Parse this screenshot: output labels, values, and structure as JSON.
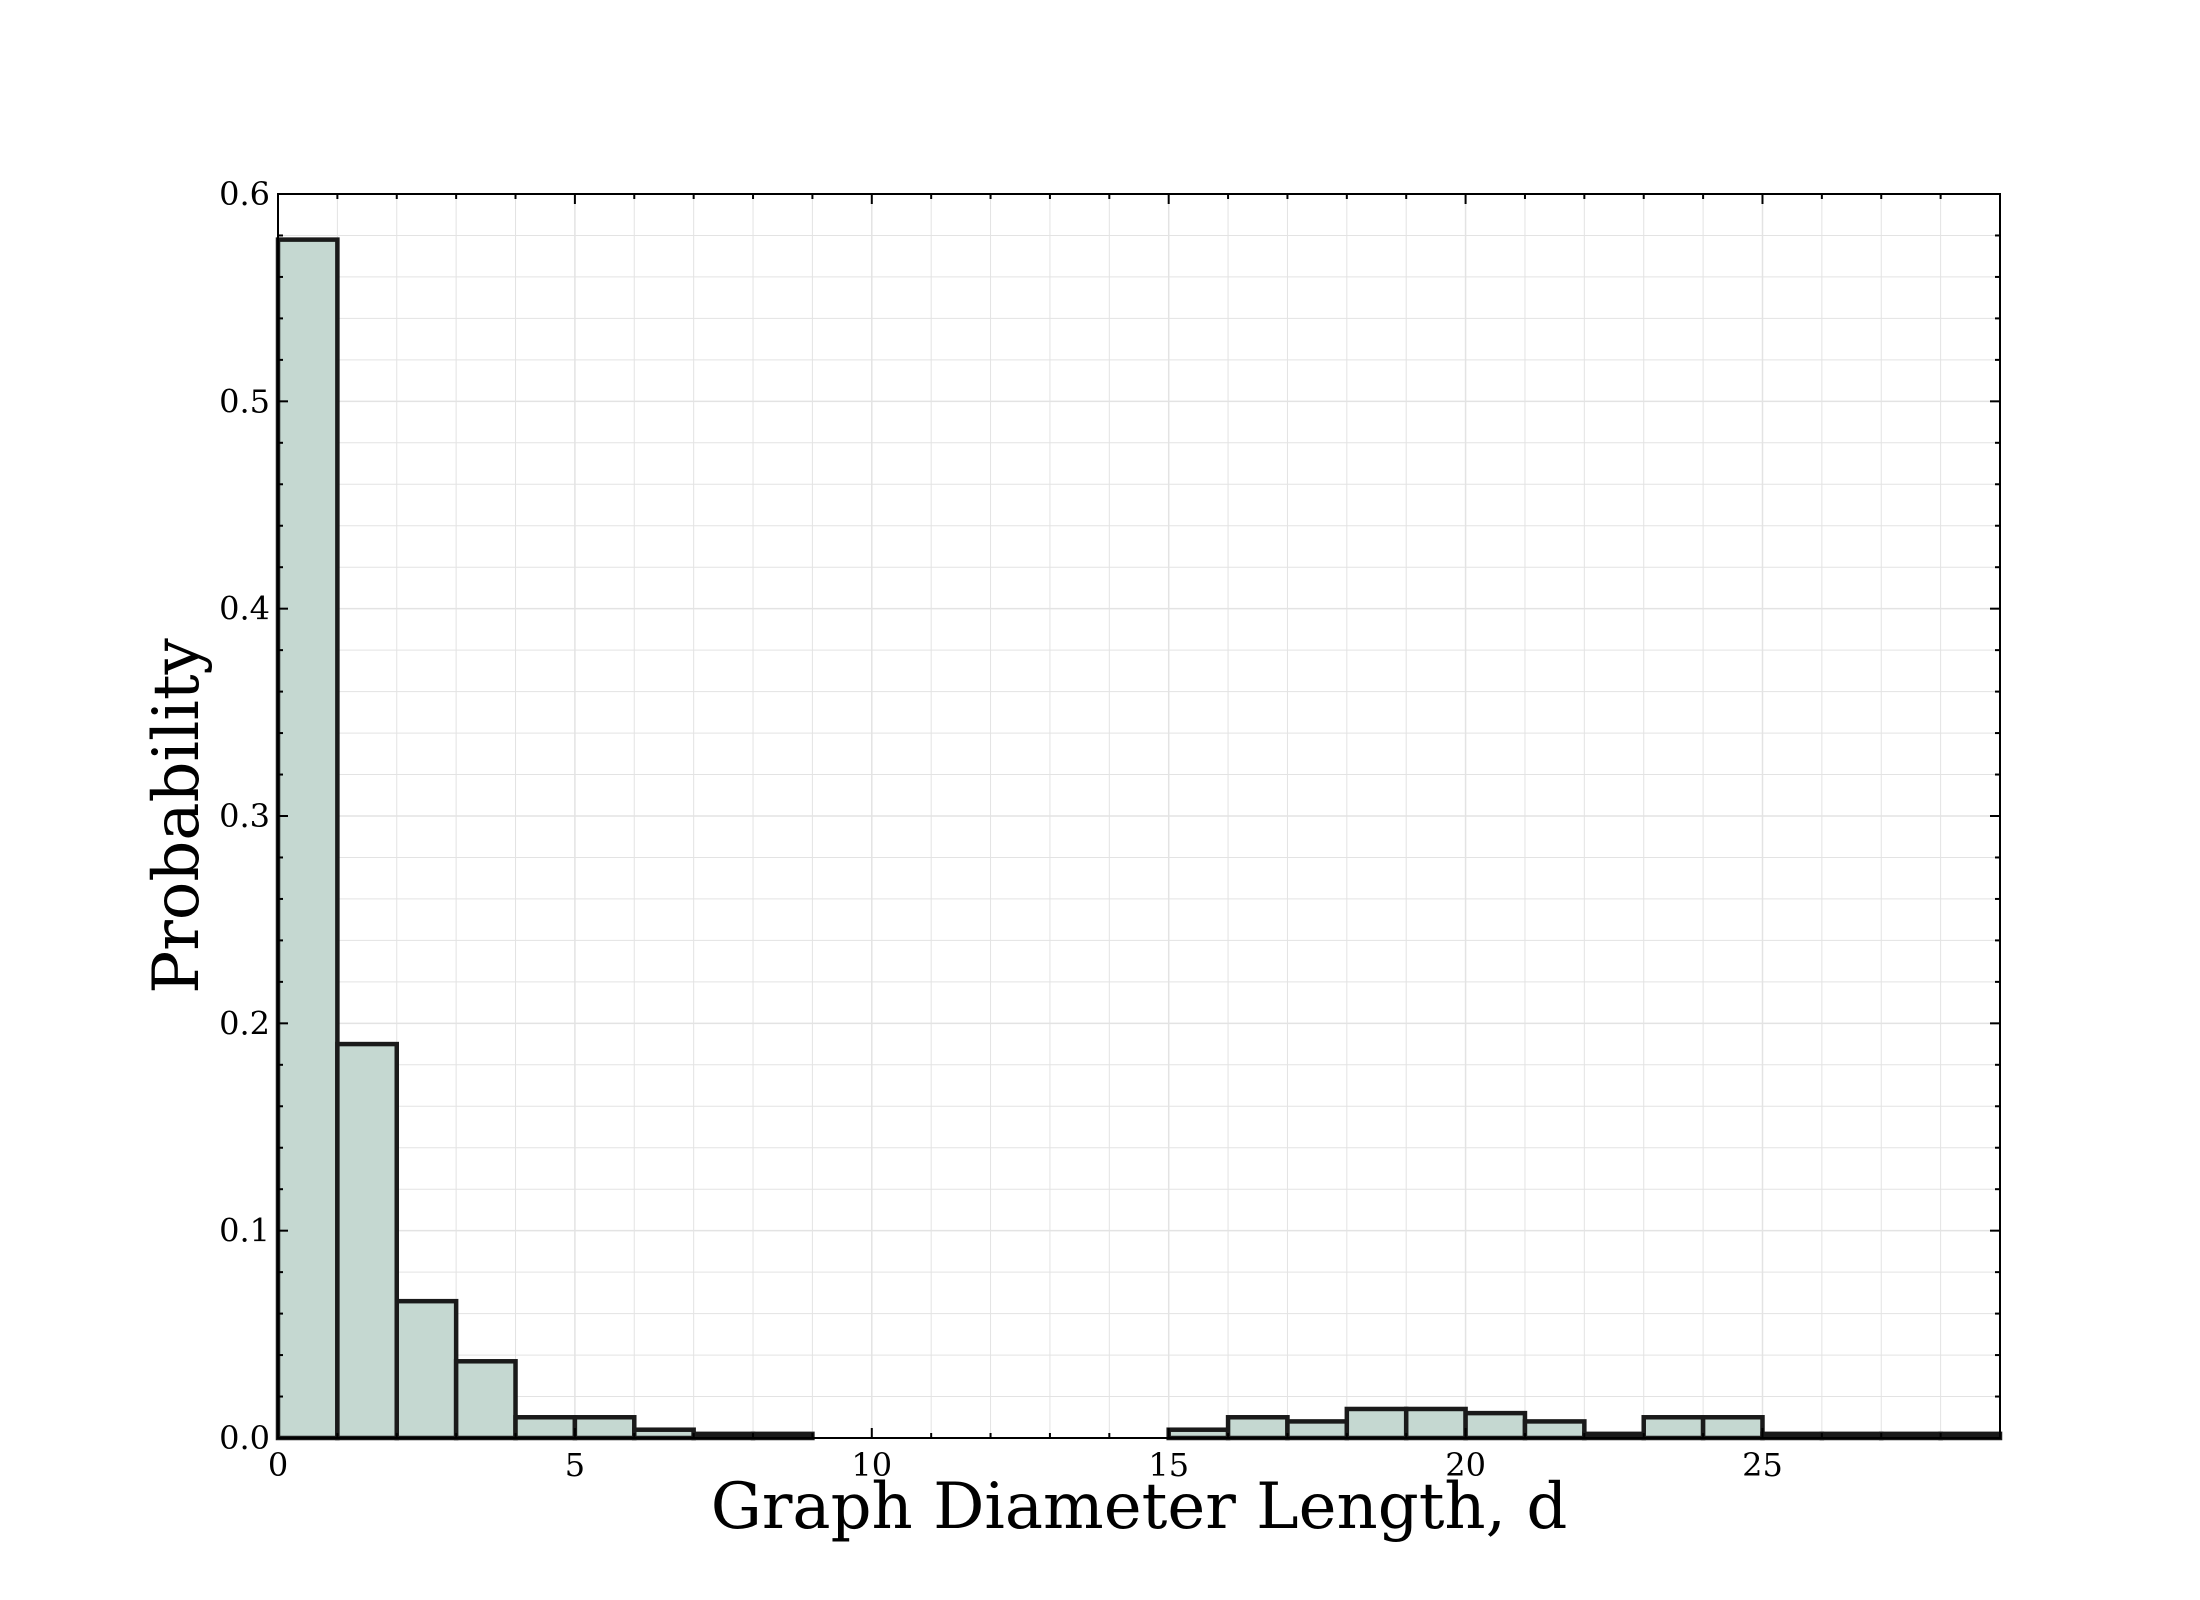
{
  "chart_data": {
    "type": "bar",
    "title": "",
    "xlabel": "Graph Diameter Length, d",
    "ylabel": "Probability",
    "xlim": [
      0,
      29
    ],
    "ylim": [
      0,
      0.6
    ],
    "x_ticks": [
      0,
      5,
      10,
      15,
      20,
      25
    ],
    "x_tick_labels": [
      "0",
      "5",
      "10",
      "15",
      "20",
      "25"
    ],
    "y_ticks": [
      0.0,
      0.1,
      0.2,
      0.3,
      0.4,
      0.5,
      0.6
    ],
    "y_tick_labels": [
      "0.0",
      "0.1",
      "0.2",
      "0.3",
      "0.4",
      "0.5",
      "0.6"
    ],
    "grid": true,
    "bin_width": 1,
    "bin_starts": [
      0,
      1,
      2,
      3,
      4,
      5,
      6,
      7,
      8,
      9,
      10,
      11,
      12,
      13,
      14,
      15,
      16,
      17,
      18,
      19,
      20,
      21,
      22,
      23,
      24,
      25,
      26,
      27,
      28
    ],
    "values": [
      0.578,
      0.19,
      0.066,
      0.037,
      0.01,
      0.01,
      0.004,
      0.002,
      0.002,
      0,
      0,
      0,
      0,
      0,
      0,
      0.004,
      0.01,
      0.008,
      0.014,
      0.014,
      0.012,
      0.008,
      0.002,
      0.01,
      0.01,
      0.002,
      0.002,
      0.002,
      0.002
    ],
    "colors": {
      "bar_fill": "#c5d8d1",
      "bar_edge": "#1a1a1a",
      "grid": "#e3e3e3"
    }
  }
}
